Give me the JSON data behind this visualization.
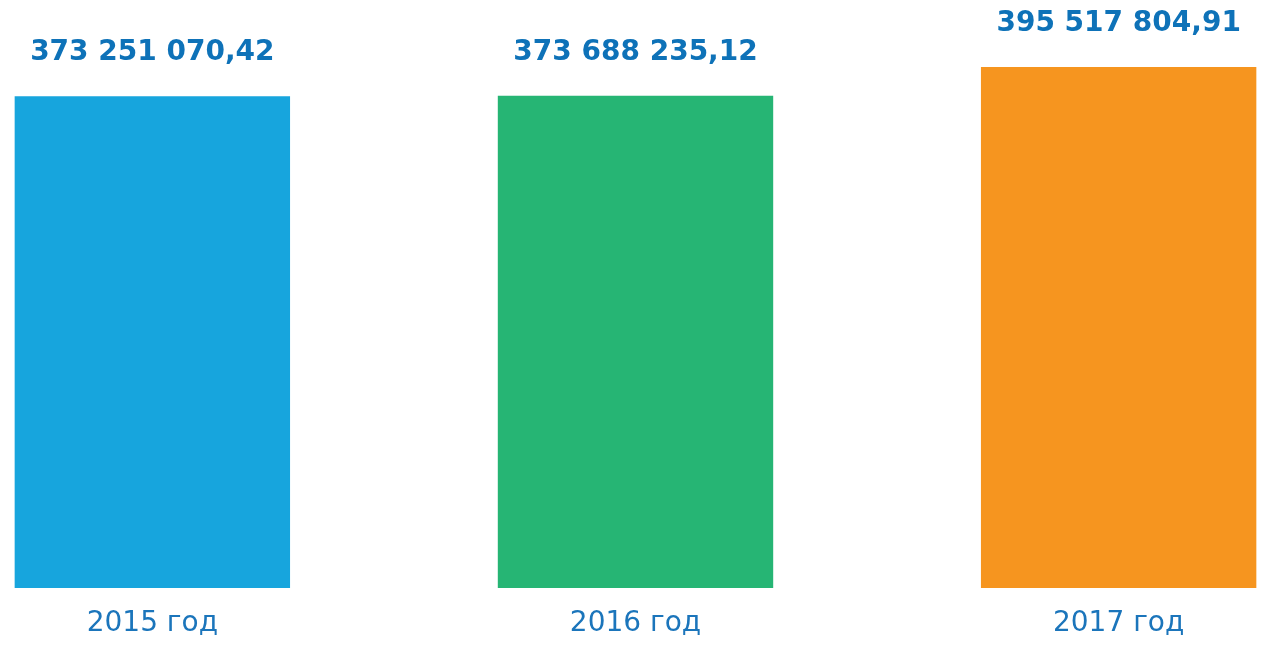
{
  "chart_data": {
    "type": "bar",
    "categories": [
      "2015 год",
      "2016 год",
      "2017 год"
    ],
    "values": [
      373251070.42,
      373688235.12,
      395517804.91
    ],
    "colors": [
      "#17a5dd",
      "#26b574",
      "#f6951f"
    ],
    "value_labels": [
      "373 251 070,42",
      "373 688 235,12",
      "395 517 804,91"
    ],
    "tick_labels": "x",
    "grid": false,
    "legend": false
  }
}
